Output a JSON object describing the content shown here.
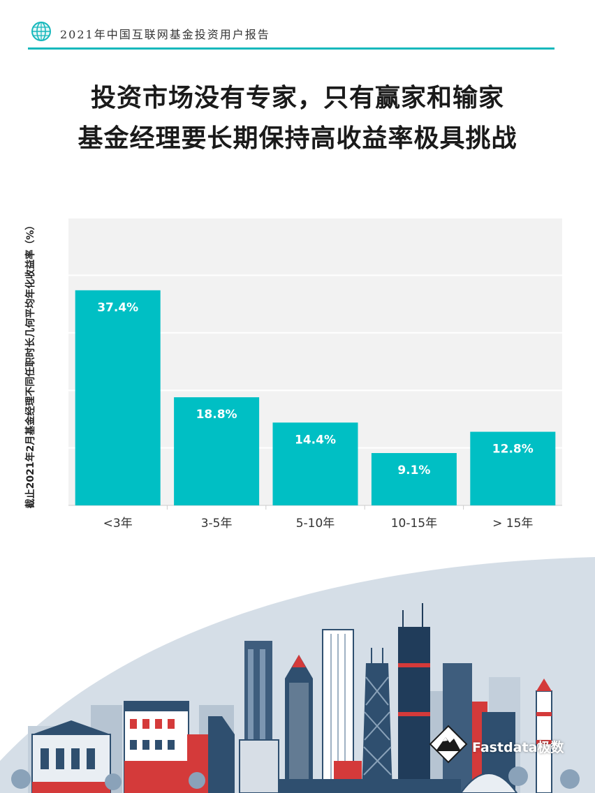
{
  "header": {
    "report_title": "2021年中国互联网基金投资用户报告"
  },
  "title": {
    "line1": "投资市场没有专家，只有赢家和输家",
    "line2": "基金经理要长期保持高收益率极具挑战"
  },
  "chart_data": {
    "type": "bar",
    "categories": [
      "<3年",
      "3-5年",
      "5-10年",
      "10-15年",
      "> 15年"
    ],
    "values": [
      37.4,
      18.8,
      14.4,
      9.1,
      12.8
    ],
    "data_labels": [
      "37.4%",
      "18.8%",
      "14.4%",
      "9.1%",
      "12.8%"
    ],
    "title": "",
    "xlabel": "",
    "ylabel": "截止2021年2月基金经理不同任职时长几何平均年化收益率（%）",
    "ylim": [
      0,
      50
    ],
    "grid": true,
    "colors": {
      "bar": "#00bfc4",
      "plot_bg": "#f2f2f2",
      "grid": "#ffffff"
    }
  },
  "brand": {
    "name": "Fastdata极数"
  }
}
